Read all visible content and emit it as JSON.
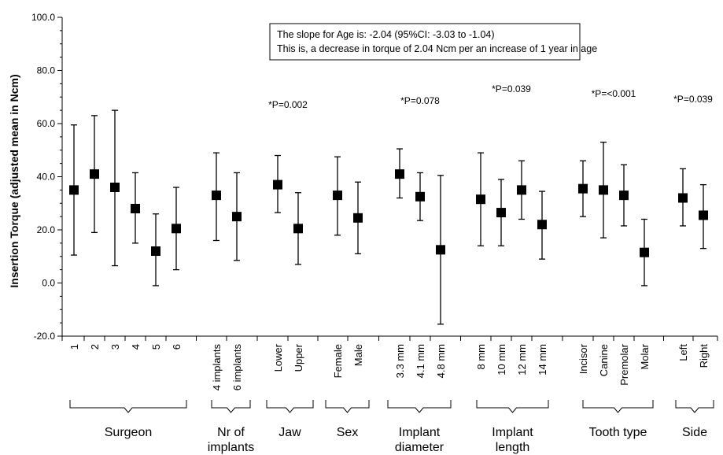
{
  "chart_data": {
    "type": "scatter",
    "ylabel": "Insertion Torque (adjusted mean in Ncm)",
    "ylim": [
      -20,
      100
    ],
    "yticks": [
      "-20.0",
      "0.0",
      "20.0",
      "40.0",
      "60.0",
      "80.0",
      "100.0"
    ],
    "grid": false,
    "annotation": [
      "The slope for Age is: -2.04 (95%CI: -3.03 to -1.04)",
      "This is, a decrease in torque of 2.04 Ncm per an increase of 1 year in age"
    ],
    "groups": [
      {
        "name": [
          "Surgeon"
        ],
        "p": "",
        "items": [
          {
            "label": "1",
            "mean": 35,
            "low": 10.5,
            "high": 59.5
          },
          {
            "label": "2",
            "mean": 41,
            "low": 19,
            "high": 63
          },
          {
            "label": "3",
            "mean": 36,
            "low": 6.5,
            "high": 65
          },
          {
            "label": "4",
            "mean": 28,
            "low": 15,
            "high": 41.5
          },
          {
            "label": "5",
            "mean": 12,
            "low": -1,
            "high": 26
          },
          {
            "label": "6",
            "mean": 20.5,
            "low": 5,
            "high": 36
          }
        ]
      },
      {
        "name": [
          "Nr of",
          "implants"
        ],
        "p": "",
        "items": [
          {
            "label": "4 implants",
            "mean": 33,
            "low": 16,
            "high": 49
          },
          {
            "label": "6 implants",
            "mean": 25,
            "low": 8.5,
            "high": 41.5
          }
        ]
      },
      {
        "name": [
          "Jaw"
        ],
        "p": "*P=0.002",
        "items": [
          {
            "label": "Lower",
            "mean": 37,
            "low": 26.5,
            "high": 48
          },
          {
            "label": "Upper",
            "mean": 20.5,
            "low": 7,
            "high": 34
          }
        ]
      },
      {
        "name": [
          "Sex"
        ],
        "p": "",
        "items": [
          {
            "label": "Female",
            "mean": 33,
            "low": 18,
            "high": 47.5
          },
          {
            "label": "Male",
            "mean": 24.5,
            "low": 11,
            "high": 38
          }
        ]
      },
      {
        "name": [
          "Implant",
          "diameter"
        ],
        "p": "*P=0.078",
        "items": [
          {
            "label": "3.3 mm",
            "mean": 41,
            "low": 32,
            "high": 50.5
          },
          {
            "label": "4.1 mm",
            "mean": 32.5,
            "low": 23.5,
            "high": 41.5
          },
          {
            "label": "4.8 mm",
            "mean": 12.5,
            "low": -15.5,
            "high": 40.5
          }
        ]
      },
      {
        "name": [
          "Implant",
          "length"
        ],
        "p": "*P=0.039",
        "items": [
          {
            "label": "8 mm",
            "mean": 31.5,
            "low": 14,
            "high": 49
          },
          {
            "label": "10 mm",
            "mean": 26.5,
            "low": 14,
            "high": 39
          },
          {
            "label": "12 mm",
            "mean": 35,
            "low": 24,
            "high": 46
          },
          {
            "label": "14 mm",
            "mean": 22,
            "low": 9,
            "high": 34.5
          }
        ]
      },
      {
        "name": [
          "Tooth type"
        ],
        "p": "*P=<0.001",
        "items": [
          {
            "label": "Incisor",
            "mean": 35.5,
            "low": 25,
            "high": 46
          },
          {
            "label": "Canine",
            "mean": 35,
            "low": 17,
            "high": 53
          },
          {
            "label": "Premolar",
            "mean": 33,
            "low": 21.5,
            "high": 44.5
          },
          {
            "label": "Molar",
            "mean": 11.5,
            "low": -1,
            "high": 24
          }
        ]
      },
      {
        "name": [
          "Side"
        ],
        "p": "*P=0.039",
        "items": [
          {
            "label": "Left",
            "mean": 32,
            "low": 21.5,
            "high": 43
          },
          {
            "label": "Right",
            "mean": 25.5,
            "low": 13,
            "high": 37
          }
        ]
      }
    ]
  }
}
